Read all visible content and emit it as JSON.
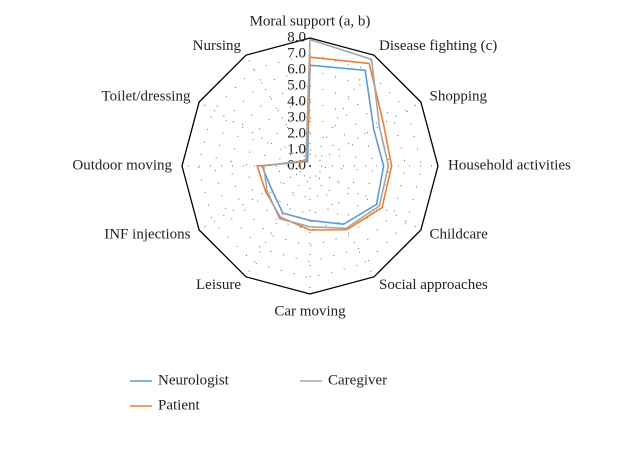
{
  "chart_data": {
    "type": "radar",
    "categories": [
      "Moral support (a, b)",
      "Disease fighting (c)",
      "Shopping",
      "Household activities",
      "Childcare",
      "Social approaches",
      "Car moving",
      "Leisure",
      "INF injections",
      "Outdoor moving",
      "Toilet/dressing",
      "Nursing"
    ],
    "series": [
      {
        "name": "Neurologist",
        "color": "#5b9bd5",
        "values": [
          6.3,
          6.9,
          4.6,
          4.6,
          4.8,
          4.2,
          3.4,
          3.4,
          2.8,
          3.0,
          0.6,
          0.3
        ]
      },
      {
        "name": "Patient",
        "color": "#ed7d31",
        "values": [
          6.8,
          7.4,
          5.3,
          5.1,
          5.2,
          4.6,
          4.0,
          3.7,
          3.2,
          3.3,
          0.5,
          0.4
        ]
      },
      {
        "name": "Caregiver",
        "color": "#a5a5a5",
        "values": [
          7.9,
          7.7,
          5.0,
          4.9,
          5.0,
          4.5,
          3.8,
          3.8,
          3.1,
          2.9,
          0.6,
          0.5
        ]
      }
    ],
    "ylim": [
      0,
      8
    ],
    "yticks": [
      {
        "value": 0,
        "label": "0.0"
      },
      {
        "value": 1,
        "label": "1.0"
      },
      {
        "value": 2,
        "label": "2.0"
      },
      {
        "value": 3,
        "label": "3.0"
      },
      {
        "value": 4,
        "label": "4.0"
      },
      {
        "value": 5,
        "label": "5.0"
      },
      {
        "value": 6,
        "label": "6.0"
      },
      {
        "value": 7,
        "label": "7.0"
      },
      {
        "value": 8,
        "label": "8.0"
      }
    ],
    "grid": true,
    "legend": "bottom"
  }
}
